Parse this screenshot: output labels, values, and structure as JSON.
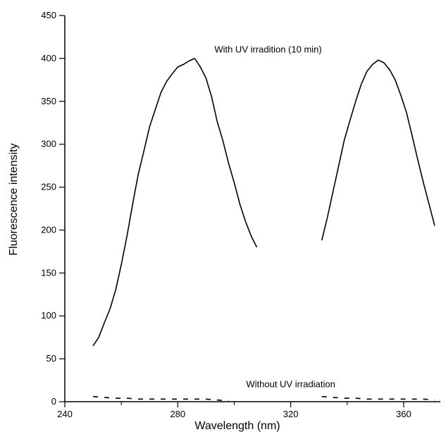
{
  "chart_data": {
    "type": "line",
    "title": "",
    "xlabel": "Wavelength (nm)",
    "ylabel": "Fluorescence intensity",
    "xlim": [
      240,
      373
    ],
    "ylim": [
      0,
      450
    ],
    "x_ticks": [
      240,
      280,
      320,
      360
    ],
    "y_ticks": [
      0,
      50,
      100,
      150,
      200,
      250,
      300,
      350,
      400,
      450
    ],
    "grid": false,
    "legend": "none",
    "annotations": [
      {
        "text": "With UV irradition (10 min)",
        "x": 312,
        "y": 410
      },
      {
        "text": "Without  UV irradiation",
        "x": 320,
        "y": 20
      }
    ],
    "series": [
      {
        "style": "solid",
        "color": "#000000",
        "segments": [
          {
            "x": [
              250,
              252,
              254,
              256,
              258,
              260,
              262,
              264,
              266,
              268,
              270,
              272,
              274,
              276,
              278,
              280,
              282,
              284,
              286,
              288,
              290,
              292,
              294,
              296,
              298,
              300,
              302,
              304,
              306,
              308
            ],
            "y": [
              65,
              75,
              92,
              108,
              130,
              160,
              193,
              230,
              265,
              292,
              320,
              340,
              360,
              373,
              382,
              390,
              393,
              397,
              400,
              390,
              377,
              355,
              326,
              304,
              278,
              255,
              230,
              210,
              193,
              180
            ]
          },
          {
            "x": [
              331,
              333,
              335,
              337,
              339,
              341,
              343,
              345,
              347,
              349,
              351,
              353,
              355,
              357,
              359,
              361,
              363,
              365,
              367,
              369,
              371
            ],
            "y": [
              188,
              215,
              245,
              275,
              305,
              328,
              350,
              370,
              385,
              393,
              398,
              395,
              387,
              375,
              357,
              337,
              310,
              282,
              255,
              230,
              205
            ]
          }
        ]
      },
      {
        "style": "dashed",
        "color": "#000000",
        "segments": [
          {
            "x": [
              250,
              254,
              258,
              262,
              266,
              270,
              274,
              278,
              282,
              286,
              290,
              294,
              298
            ],
            "y": [
              6,
              5,
              4,
              4,
              3,
              3,
              3,
              3,
              3,
              3,
              3,
              2,
              1
            ]
          },
          {
            "x": [
              331,
              335,
              339,
              343,
              347,
              351,
              355,
              359,
              363,
              367,
              371
            ],
            "y": [
              6,
              5,
              4,
              4,
              3,
              3,
              3,
              3,
              3,
              3,
              2
            ]
          }
        ]
      }
    ]
  }
}
